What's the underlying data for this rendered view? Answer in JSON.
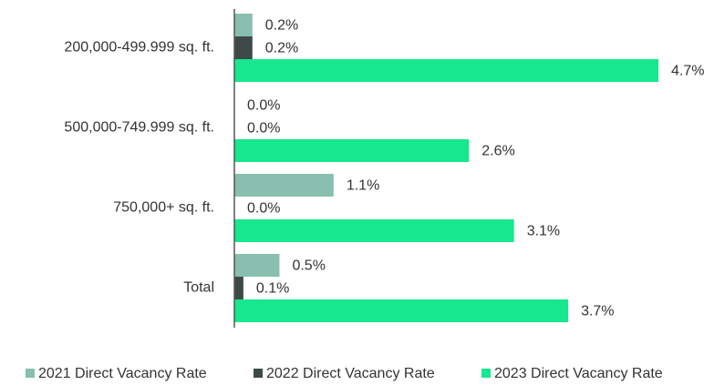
{
  "chart_data": {
    "type": "bar",
    "orientation": "horizontal",
    "categories": [
      "200,000-499.999 sq. ft.",
      "500,000-749.999 sq. ft.",
      "750,000+ sq. ft.",
      "Total"
    ],
    "series": [
      {
        "name": "2021 Direct Vacancy Rate",
        "color": "#88bfae",
        "values": [
          0.2,
          0.0,
          1.1,
          0.5
        ],
        "value_labels": [
          "0.2%",
          "0.0%",
          "1.1%",
          "0.5%"
        ]
      },
      {
        "name": "2022 Direct Vacancy Rate",
        "color": "#3e4a48",
        "values": [
          0.2,
          0.0,
          0.0,
          0.1
        ],
        "value_labels": [
          "0.2%",
          "0.0%",
          "0.0%",
          "0.1%"
        ]
      },
      {
        "name": "2023 Direct Vacancy Rate",
        "color": "#17e88f",
        "values": [
          4.7,
          2.6,
          3.1,
          3.7
        ],
        "value_labels": [
          "4.7%",
          "2.6%",
          "3.1%",
          "3.7%"
        ]
      }
    ],
    "legend": "bottom"
  }
}
